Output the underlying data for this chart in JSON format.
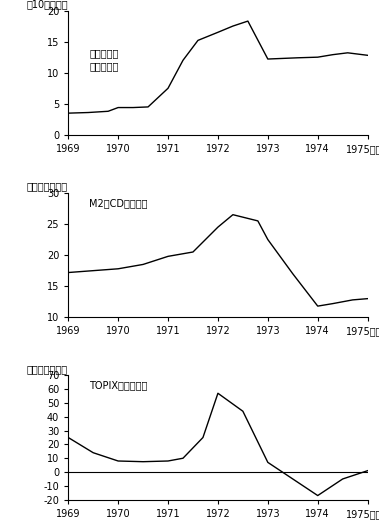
{
  "title": "",
  "chart1": {
    "ylabel": "（10億ドル）",
    "label": "外貨準備高\n（年末値）",
    "years": [
      1969,
      1969.4,
      1969.8,
      1970,
      1970.3,
      1970.6,
      1971,
      1971.3,
      1971.6,
      1972,
      1972.3,
      1972.6,
      1973,
      1973.3,
      1973.6,
      1974,
      1974.3,
      1974.6,
      1975
    ],
    "values": [
      3.5,
      3.6,
      3.8,
      4.4,
      4.4,
      4.5,
      7.5,
      12.0,
      15.2,
      16.5,
      17.5,
      18.3,
      12.2,
      12.3,
      12.4,
      12.5,
      12.9,
      13.2,
      12.8
    ],
    "ylim": [
      0,
      20
    ],
    "yticks": [
      0,
      5,
      10,
      15,
      20
    ]
  },
  "chart2": {
    "ylabel": "（前年比，％）",
    "label": "M2＋CD（平残）",
    "years": [
      1969,
      1969.5,
      1970,
      1970.5,
      1971,
      1971.5,
      1972,
      1972.3,
      1972.8,
      1973,
      1973.5,
      1974,
      1974.3,
      1974.7,
      1975
    ],
    "values": [
      17.2,
      17.5,
      17.8,
      18.5,
      19.8,
      20.5,
      24.5,
      26.5,
      25.5,
      22.5,
      17.0,
      11.8,
      12.2,
      12.8,
      13.0
    ],
    "ylim": [
      10,
      30
    ],
    "yticks": [
      10,
      15,
      20,
      25,
      30
    ]
  },
  "chart3": {
    "ylabel": "（前年比，％）",
    "label": "TOPIX（年平均）",
    "years": [
      1969,
      1969.5,
      1970,
      1970.5,
      1971,
      1971.3,
      1971.7,
      1972,
      1972.5,
      1973,
      1973.5,
      1974,
      1974.5,
      1975
    ],
    "values": [
      25.0,
      14.0,
      8.0,
      7.5,
      8.0,
      10.0,
      25.0,
      57.0,
      44.0,
      7.0,
      -5.0,
      -17.0,
      -5.0,
      1.0
    ],
    "ylim": [
      -20,
      70
    ],
    "yticks": [
      -20,
      -10,
      0,
      10,
      20,
      30,
      40,
      50,
      60,
      70
    ],
    "zero_line": true
  },
  "xticks": [
    1969,
    1970,
    1971,
    1972,
    1973,
    1974,
    1975
  ],
  "nen_label": "（年）",
  "line_color": "#000000",
  "bg_color": "#ffffff"
}
